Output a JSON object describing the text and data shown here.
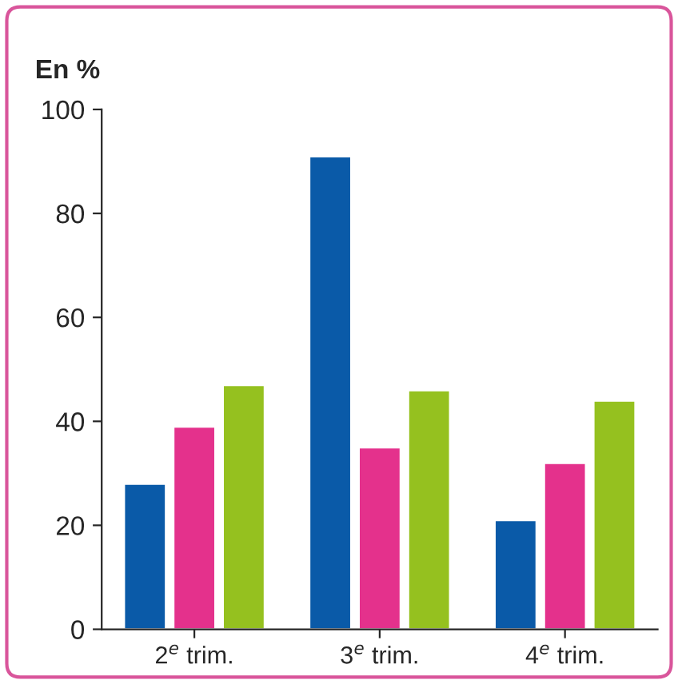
{
  "chart_data": {
    "type": "bar",
    "ylabel": "En %",
    "categories": [
      "2$^{e}$ trim.",
      "3$^{e}$ trim.",
      "4$^{e}$ trim."
    ],
    "series": [
      {
        "color": "#0a5aa8",
        "values": [
          28,
          91,
          21
        ]
      },
      {
        "color": "#e4318c",
        "values": [
          39,
          35,
          32
        ]
      },
      {
        "color": "#95c11f",
        "values": [
          47,
          46,
          44
        ]
      }
    ],
    "ylim": [
      0,
      100
    ],
    "yticks": [
      0,
      20,
      40,
      60,
      80,
      100
    ],
    "grid": false,
    "legend": false
  }
}
